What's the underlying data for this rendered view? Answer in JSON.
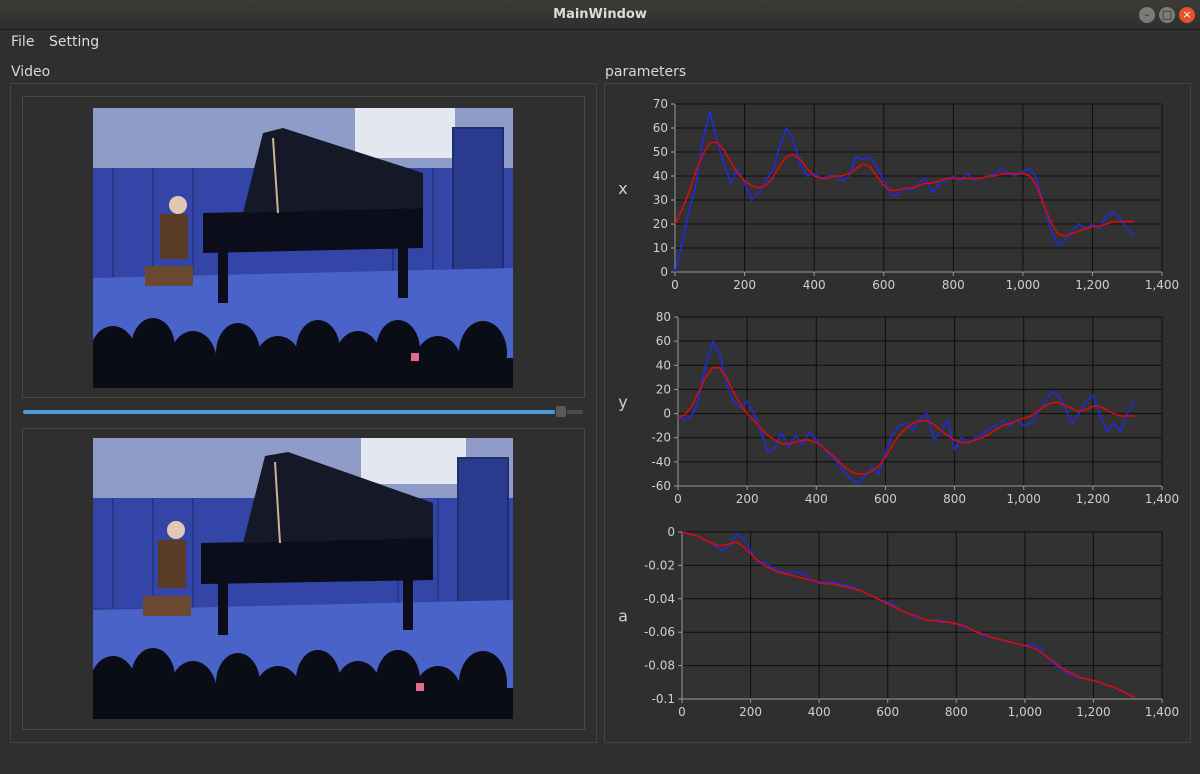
{
  "window": {
    "title": "MainWindow"
  },
  "menu": {
    "file": "File",
    "setting": "Setting"
  },
  "labels": {
    "video": "Video",
    "parameters": "parameters"
  },
  "slider": {
    "value": 0.96
  },
  "colors": {
    "raw": "#1f2bdc",
    "smooth": "#d60d0d",
    "accent": "#4a9ad7"
  },
  "chart_data": [
    {
      "type": "line",
      "ylabel": "x",
      "xlim": [
        0,
        1400
      ],
      "ylim": [
        0,
        70
      ],
      "xticks": [
        0,
        200,
        400,
        600,
        800,
        1000,
        1200,
        1400
      ],
      "xtick_labels": [
        "0",
        "200",
        "400",
        "600",
        "800",
        "1,000",
        "1,200",
        "1,400"
      ],
      "yticks": [
        0,
        10,
        20,
        30,
        40,
        50,
        60,
        70
      ],
      "ytick_labels": [
        "0",
        "10",
        "20",
        "30",
        "40",
        "50",
        "60",
        "70"
      ],
      "series": [
        {
          "color": "#1f2bdc",
          "x": [
            0,
            20,
            40,
            60,
            80,
            100,
            120,
            140,
            160,
            180,
            200,
            220,
            240,
            260,
            280,
            300,
            320,
            340,
            360,
            380,
            400,
            420,
            440,
            460,
            480,
            500,
            520,
            540,
            560,
            580,
            600,
            620,
            640,
            660,
            680,
            700,
            720,
            740,
            760,
            780,
            800,
            820,
            840,
            860,
            880,
            900,
            920,
            940,
            960,
            980,
            1000,
            1020,
            1040,
            1060,
            1080,
            1100,
            1120,
            1140,
            1160,
            1180,
            1200,
            1220,
            1240,
            1260,
            1280,
            1300,
            1320
          ],
          "y": [
            0,
            12,
            25,
            36,
            55,
            67,
            55,
            45,
            37,
            43,
            37,
            30,
            33,
            38,
            42,
            52,
            60,
            55,
            45,
            40,
            41,
            39,
            40,
            40,
            38,
            40,
            48,
            47,
            48,
            44,
            38,
            32,
            32,
            35,
            34,
            37,
            39,
            33,
            37,
            38,
            40,
            38,
            41,
            38,
            39,
            40,
            41,
            43,
            41,
            40,
            42,
            43,
            39,
            28,
            18,
            11,
            13,
            17,
            20,
            18,
            20,
            18,
            23,
            25,
            22,
            18,
            15
          ]
        },
        {
          "color": "#d60d0d",
          "x": [
            0,
            20,
            40,
            60,
            80,
            100,
            120,
            140,
            160,
            180,
            200,
            220,
            240,
            260,
            280,
            300,
            320,
            340,
            360,
            380,
            400,
            420,
            440,
            460,
            480,
            500,
            520,
            540,
            560,
            580,
            600,
            620,
            640,
            660,
            680,
            700,
            720,
            740,
            760,
            780,
            800,
            820,
            840,
            860,
            880,
            900,
            920,
            940,
            960,
            980,
            1000,
            1020,
            1040,
            1060,
            1080,
            1100,
            1120,
            1140,
            1160,
            1180,
            1200,
            1220,
            1240,
            1260,
            1280,
            1300,
            1320
          ],
          "y": [
            20,
            26,
            33,
            42,
            49,
            54,
            54,
            51,
            46,
            41,
            38,
            36,
            35,
            36,
            39,
            44,
            48,
            49,
            47,
            43,
            40,
            39,
            39,
            40,
            40,
            41,
            43,
            45,
            44,
            40,
            36,
            34,
            34,
            35,
            35,
            36,
            37,
            37,
            38,
            39,
            39,
            39,
            39,
            39,
            39,
            40,
            40,
            41,
            41,
            41,
            41,
            40,
            36,
            28,
            21,
            16,
            15,
            16,
            17,
            18,
            19,
            19,
            20,
            21,
            21,
            21,
            21
          ]
        }
      ]
    },
    {
      "type": "line",
      "ylabel": "y",
      "xlim": [
        0,
        1400
      ],
      "ylim": [
        -60,
        80
      ],
      "xticks": [
        0,
        200,
        400,
        600,
        800,
        1000,
        1200,
        1400
      ],
      "xtick_labels": [
        "0",
        "200",
        "400",
        "600",
        "800",
        "1,000",
        "1,200",
        "1,400"
      ],
      "yticks": [
        -60,
        -40,
        -20,
        0,
        20,
        40,
        60,
        80
      ],
      "ytick_labels": [
        "-60",
        "-40",
        "-20",
        "0",
        "20",
        "40",
        "60",
        "80"
      ],
      "series": [
        {
          "color": "#1f2bdc",
          "x": [
            0,
            20,
            40,
            60,
            80,
            100,
            120,
            140,
            160,
            180,
            200,
            220,
            240,
            260,
            280,
            300,
            320,
            340,
            360,
            380,
            400,
            420,
            440,
            460,
            480,
            500,
            520,
            540,
            560,
            580,
            600,
            620,
            640,
            660,
            680,
            700,
            720,
            740,
            760,
            780,
            800,
            820,
            840,
            860,
            880,
            900,
            920,
            940,
            960,
            980,
            1000,
            1020,
            1040,
            1060,
            1080,
            1100,
            1120,
            1140,
            1160,
            1180,
            1200,
            1220,
            1240,
            1260,
            1280,
            1300,
            1320
          ],
          "y": [
            -3,
            -5,
            -2,
            12,
            40,
            60,
            50,
            25,
            10,
            5,
            10,
            0,
            -15,
            -32,
            -28,
            -16,
            -28,
            -18,
            -26,
            -15,
            -22,
            -28,
            -35,
            -40,
            -48,
            -54,
            -58,
            -52,
            -45,
            -50,
            -32,
            -18,
            -10,
            -8,
            -14,
            -4,
            0,
            -22,
            -15,
            -5,
            -30,
            -20,
            -25,
            -20,
            -18,
            -12,
            -10,
            -6,
            -10,
            -5,
            -10,
            -8,
            0,
            8,
            18,
            15,
            5,
            -8,
            0,
            10,
            15,
            0,
            -15,
            -8,
            -15,
            0,
            10
          ]
        },
        {
          "color": "#d60d0d",
          "x": [
            0,
            20,
            40,
            60,
            80,
            100,
            120,
            140,
            160,
            180,
            200,
            220,
            240,
            260,
            280,
            300,
            320,
            340,
            360,
            380,
            400,
            420,
            440,
            460,
            480,
            500,
            520,
            540,
            560,
            580,
            600,
            620,
            640,
            660,
            680,
            700,
            720,
            740,
            760,
            780,
            800,
            820,
            840,
            860,
            880,
            900,
            920,
            940,
            960,
            980,
            1000,
            1020,
            1040,
            1060,
            1080,
            1100,
            1120,
            1140,
            1160,
            1180,
            1200,
            1220,
            1240,
            1260,
            1280,
            1300,
            1320
          ],
          "y": [
            -3,
            -1,
            6,
            18,
            30,
            38,
            38,
            30,
            18,
            8,
            0,
            -6,
            -12,
            -18,
            -22,
            -25,
            -25,
            -24,
            -22,
            -22,
            -24,
            -28,
            -33,
            -38,
            -44,
            -48,
            -50,
            -50,
            -48,
            -44,
            -36,
            -26,
            -18,
            -12,
            -8,
            -6,
            -6,
            -9,
            -14,
            -18,
            -22,
            -24,
            -24,
            -22,
            -20,
            -17,
            -13,
            -10,
            -8,
            -6,
            -4,
            -2,
            2,
            6,
            9,
            9,
            7,
            4,
            2,
            3,
            6,
            6,
            3,
            0,
            -2,
            -2,
            -2
          ]
        }
      ]
    },
    {
      "type": "line",
      "ylabel": "a",
      "xlim": [
        0,
        1400
      ],
      "ylim": [
        -0.1,
        0
      ],
      "xticks": [
        0,
        200,
        400,
        600,
        800,
        1000,
        1200,
        1400
      ],
      "xtick_labels": [
        "0",
        "200",
        "400",
        "600",
        "800",
        "1,000",
        "1,200",
        "1,400"
      ],
      "yticks": [
        -0.1,
        -0.08,
        -0.06,
        -0.04,
        -0.02,
        0
      ],
      "ytick_labels": [
        "-0.1",
        "-0.08",
        "-0.06",
        "-0.04",
        "-0.02",
        "0"
      ],
      "series": [
        {
          "color": "#1f2bdc",
          "x": [
            0,
            20,
            40,
            60,
            80,
            100,
            120,
            140,
            160,
            180,
            200,
            220,
            240,
            260,
            280,
            300,
            320,
            340,
            360,
            380,
            400,
            420,
            440,
            460,
            480,
            500,
            520,
            540,
            560,
            580,
            600,
            620,
            640,
            660,
            680,
            700,
            720,
            740,
            760,
            780,
            800,
            820,
            840,
            860,
            880,
            900,
            920,
            940,
            960,
            980,
            1000,
            1020,
            1040,
            1060,
            1080,
            1100,
            1120,
            1140,
            1160,
            1180,
            1200,
            1220,
            1240,
            1260,
            1280,
            1300,
            1320
          ],
          "y": [
            0,
            -0.001,
            -0.002,
            -0.004,
            -0.006,
            -0.009,
            -0.011,
            -0.007,
            -0.001,
            -0.004,
            -0.011,
            -0.018,
            -0.018,
            -0.021,
            -0.023,
            -0.025,
            -0.024,
            -0.024,
            -0.026,
            -0.029,
            -0.031,
            -0.03,
            -0.03,
            -0.031,
            -0.032,
            -0.033,
            -0.035,
            -0.037,
            -0.039,
            -0.041,
            -0.042,
            -0.044,
            -0.047,
            -0.049,
            -0.051,
            -0.052,
            -0.053,
            -0.053,
            -0.053,
            -0.054,
            -0.055,
            -0.057,
            -0.058,
            -0.06,
            -0.062,
            -0.063,
            -0.064,
            -0.065,
            -0.066,
            -0.067,
            -0.068,
            -0.067,
            -0.069,
            -0.074,
            -0.078,
            -0.081,
            -0.084,
            -0.086,
            -0.087,
            -0.088,
            -0.089,
            -0.09,
            -0.092,
            -0.093,
            -0.095,
            -0.097,
            -0.099
          ]
        },
        {
          "color": "#d60d0d",
          "x": [
            0,
            20,
            40,
            60,
            80,
            100,
            120,
            140,
            160,
            180,
            200,
            220,
            240,
            260,
            280,
            300,
            320,
            340,
            360,
            380,
            400,
            420,
            440,
            460,
            480,
            500,
            520,
            540,
            560,
            580,
            600,
            620,
            640,
            660,
            680,
            700,
            720,
            740,
            760,
            780,
            800,
            820,
            840,
            860,
            880,
            900,
            920,
            940,
            960,
            980,
            1000,
            1020,
            1040,
            1060,
            1080,
            1100,
            1120,
            1140,
            1160,
            1180,
            1200,
            1220,
            1240,
            1260,
            1280,
            1300,
            1320
          ],
          "y": [
            0,
            -0.001,
            -0.002,
            -0.004,
            -0.006,
            -0.008,
            -0.008,
            -0.007,
            -0.006,
            -0.009,
            -0.013,
            -0.017,
            -0.02,
            -0.022,
            -0.024,
            -0.025,
            -0.026,
            -0.027,
            -0.028,
            -0.029,
            -0.03,
            -0.031,
            -0.031,
            -0.032,
            -0.033,
            -0.034,
            -0.035,
            -0.037,
            -0.039,
            -0.041,
            -0.043,
            -0.045,
            -0.047,
            -0.049,
            -0.05,
            -0.052,
            -0.053,
            -0.053,
            -0.054,
            -0.054,
            -0.055,
            -0.056,
            -0.058,
            -0.06,
            -0.061,
            -0.063,
            -0.064,
            -0.065,
            -0.066,
            -0.067,
            -0.068,
            -0.069,
            -0.071,
            -0.074,
            -0.077,
            -0.08,
            -0.083,
            -0.085,
            -0.087,
            -0.088,
            -0.089,
            -0.09,
            -0.092,
            -0.093,
            -0.095,
            -0.097,
            -0.099
          ]
        }
      ]
    }
  ]
}
